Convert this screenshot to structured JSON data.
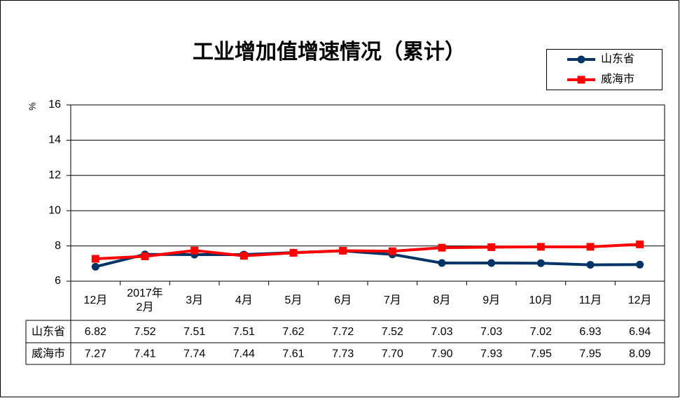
{
  "chart_data": {
    "type": "line",
    "title": "工业增加值增速情况（累计）",
    "y_label": "%",
    "categories": [
      "12月",
      "2017年\n2月",
      "3月",
      "4月",
      "5月",
      "6月",
      "7月",
      "8月",
      "9月",
      "10月",
      "11月",
      "12月"
    ],
    "series": [
      {
        "name": "山东省",
        "color": "#003366",
        "marker": "circle",
        "values": [
          6.82,
          7.52,
          7.51,
          7.51,
          7.62,
          7.72,
          7.52,
          7.03,
          7.03,
          7.02,
          6.93,
          6.94
        ],
        "value_labels": [
          "6.82",
          "7.52",
          "7.51",
          "7.51",
          "7.62",
          "7.72",
          "7.52",
          "7.03",
          "7.03",
          "7.02",
          "6.93",
          "6.94"
        ]
      },
      {
        "name": "威海市",
        "color": "#ff0000",
        "marker": "square",
        "values": [
          7.27,
          7.41,
          7.74,
          7.44,
          7.61,
          7.73,
          7.7,
          7.9,
          7.93,
          7.95,
          7.95,
          8.09
        ],
        "value_labels": [
          "7.27",
          "7.41",
          "7.74",
          "7.44",
          "7.61",
          "7.73",
          "7.70",
          "7.90",
          "7.93",
          "7.95",
          "7.95",
          "8.09"
        ]
      }
    ],
    "ylim": [
      6,
      16
    ],
    "yticks": [
      6,
      8,
      10,
      12,
      14,
      16
    ],
    "grid": true,
    "legend": "top-right"
  }
}
